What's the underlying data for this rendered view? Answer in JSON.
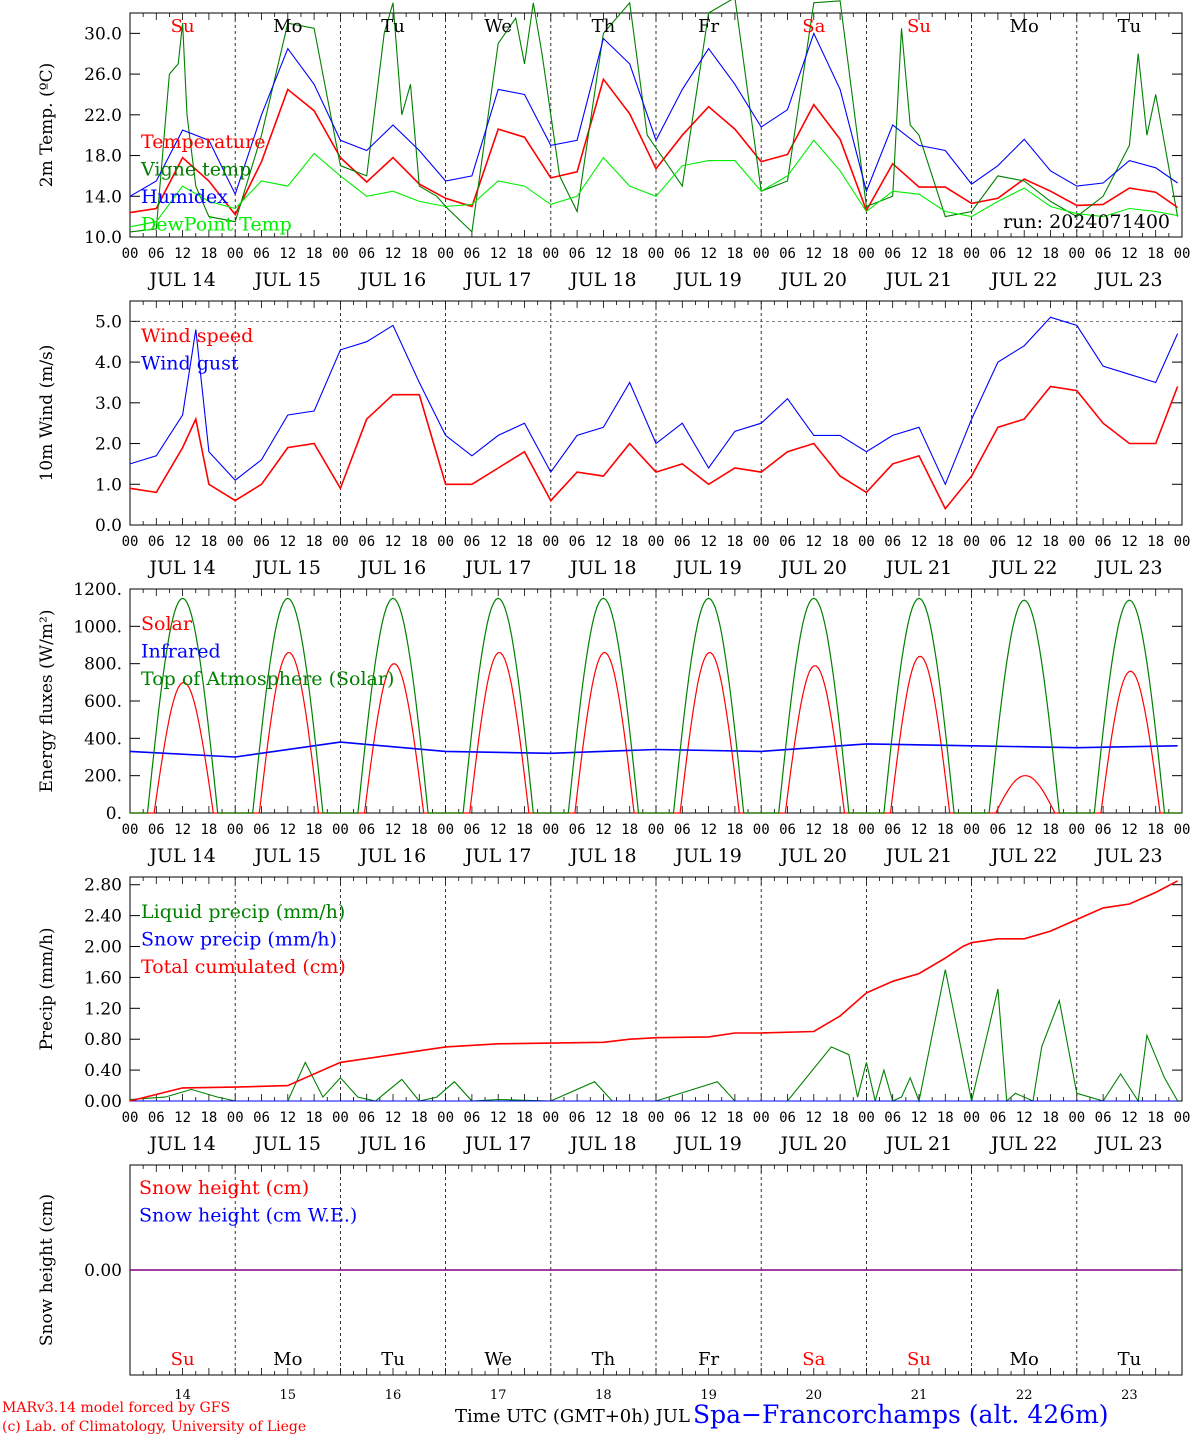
{
  "colors": {
    "red": "#ff0000",
    "green": "#008000",
    "blue": "#0000ff",
    "lightgreen": "#00ee00",
    "purple": "#800080",
    "black": "#000000"
  },
  "days": [
    "JUL 14",
    "JUL 15",
    "JUL 16",
    "JUL 17",
    "JUL 18",
    "JUL 19",
    "JUL 20",
    "JUL 21",
    "JUL 22",
    "JUL 23"
  ],
  "weekdays": [
    "Su",
    "Mo",
    "Tu",
    "We",
    "Th",
    "Fr",
    "Sa",
    "Su",
    "Mo",
    "Tu"
  ],
  "weekday_colors": [
    "red",
    "black",
    "black",
    "black",
    "black",
    "black",
    "red",
    "red",
    "black",
    "black"
  ],
  "day_numbers": [
    "14",
    "15",
    "16",
    "17",
    "18",
    "19",
    "20",
    "21",
    "22",
    "23"
  ],
  "hour_ticks": [
    "00",
    "06",
    "12",
    "18"
  ],
  "hour_end": "00",
  "footer": {
    "credit_line1": "MARv3.14 model forced by GFS",
    "credit_line2": "(c) Lab. of Climatology, University of Liege",
    "xlabel": "Time UTC (GMT+0h) JUL",
    "station": "Spa−Francorchamps (alt. 426m)"
  },
  "chart_data": [
    {
      "type": "line",
      "ylabel": "2m Temp. (ºC)",
      "ylim": [
        10,
        32
      ],
      "yticks": [
        "10.0",
        "14.0",
        "18.0",
        "22.0",
        "26.0",
        "30.0"
      ],
      "annotation": "run: 2024071400",
      "x_unit": "hours since JUL 14 00 UTC",
      "series": [
        {
          "name": "Temperature",
          "color": "red",
          "x": [
            0,
            6,
            12,
            18,
            24,
            30,
            36,
            42,
            48,
            54,
            60,
            66,
            72,
            78,
            84,
            90,
            96,
            102,
            108,
            114,
            120,
            126,
            132,
            138,
            144,
            150,
            156,
            162,
            168,
            174,
            180,
            186,
            192,
            198,
            204,
            210,
            216,
            222,
            228,
            234,
            239
          ],
          "y": [
            12.4,
            12.8,
            17.8,
            15.5,
            12.2,
            17.4,
            24.5,
            22.4,
            17.8,
            15.4,
            17.8,
            15.2,
            13.8,
            13.0,
            20.6,
            19.8,
            15.8,
            16.4,
            25.5,
            22.1,
            16.7,
            20.0,
            22.8,
            20.6,
            17.4,
            18.1,
            23.0,
            19.6,
            12.6,
            17.2,
            14.9,
            14.9,
            13.3,
            13.8,
            15.7,
            14.5,
            13.1,
            13.2,
            14.8,
            14.4,
            12.9
          ]
        },
        {
          "name": "Vigne temp",
          "color": "green",
          "x": [
            0,
            6,
            9,
            11,
            12,
            13,
            15,
            18,
            24,
            30,
            36,
            42,
            48,
            54,
            58,
            60,
            62,
            64,
            66,
            70,
            72,
            78,
            84,
            88,
            90,
            92,
            94,
            98,
            102,
            108,
            114,
            118,
            126,
            132,
            138,
            144,
            150,
            156,
            162,
            168,
            174,
            176,
            178,
            180,
            186,
            192,
            198,
            204,
            210,
            216,
            222,
            228,
            230,
            232,
            234,
            239
          ],
          "y": [
            10.5,
            10.8,
            26.0,
            27.0,
            31.0,
            22.0,
            15.0,
            12.0,
            11.5,
            20.0,
            31.0,
            30.5,
            17.0,
            16.0,
            30.0,
            33.0,
            22.0,
            25.0,
            15.0,
            14.0,
            13.0,
            10.5,
            29.0,
            31.5,
            27.0,
            33.0,
            28.0,
            16.0,
            12.5,
            30.0,
            33.0,
            20.0,
            15.0,
            32.0,
            33.5,
            14.5,
            15.5,
            33.0,
            33.2,
            13.0,
            14.0,
            30.5,
            21.0,
            20.0,
            12.0,
            12.5,
            16.0,
            15.5,
            13.5,
            12.0,
            14.0,
            19.0,
            28.0,
            20.0,
            24.0,
            12.0
          ]
        },
        {
          "name": "Humidex",
          "color": "blue",
          "x": [
            0,
            6,
            12,
            18,
            24,
            30,
            36,
            42,
            48,
            54,
            60,
            66,
            72,
            78,
            84,
            90,
            96,
            102,
            108,
            114,
            120,
            126,
            132,
            138,
            144,
            150,
            156,
            162,
            168,
            174,
            180,
            186,
            192,
            198,
            204,
            210,
            216,
            222,
            228,
            234,
            239
          ],
          "y": [
            14.0,
            15.5,
            20.5,
            19.5,
            14.2,
            22.0,
            28.5,
            25.0,
            19.5,
            18.5,
            21.0,
            18.5,
            15.5,
            16.0,
            24.5,
            24.0,
            19.0,
            19.5,
            29.5,
            27.0,
            19.5,
            24.5,
            28.5,
            25.0,
            20.8,
            22.5,
            30.0,
            24.5,
            14.5,
            21.0,
            19.0,
            18.5,
            15.2,
            17.0,
            19.6,
            16.5,
            15.0,
            15.3,
            17.5,
            16.8,
            15.3
          ]
        },
        {
          "name": "DewPoint Temp",
          "color": "lightgreen",
          "x": [
            0,
            6,
            12,
            18,
            24,
            30,
            36,
            42,
            48,
            54,
            60,
            66,
            72,
            78,
            84,
            90,
            96,
            102,
            108,
            114,
            120,
            126,
            132,
            138,
            144,
            150,
            156,
            162,
            168,
            174,
            180,
            186,
            192,
            198,
            204,
            210,
            216,
            222,
            228,
            234,
            239
          ],
          "y": [
            11.0,
            11.5,
            15.0,
            13.5,
            12.8,
            15.5,
            15.0,
            18.2,
            16.0,
            14.0,
            14.5,
            13.5,
            13.0,
            13.2,
            15.5,
            15.0,
            13.2,
            14.0,
            17.8,
            15.0,
            14.0,
            17.0,
            17.5,
            17.5,
            14.5,
            16.0,
            19.5,
            16.5,
            12.5,
            14.5,
            14.2,
            12.5,
            12.0,
            13.5,
            14.8,
            13.0,
            12.3,
            12.0,
            12.8,
            12.5,
            12.1
          ]
        }
      ]
    },
    {
      "type": "line",
      "ylabel": "10m Wind (m/s)",
      "ylim": [
        0,
        5.5
      ],
      "yticks": [
        "0.0",
        "1.0",
        "2.0",
        "3.0",
        "4.0",
        "5.0"
      ],
      "series": [
        {
          "name": "Wind speed",
          "color": "red",
          "x": [
            0,
            6,
            12,
            15,
            18,
            24,
            30,
            36,
            42,
            48,
            54,
            60,
            66,
            72,
            78,
            84,
            90,
            96,
            102,
            108,
            114,
            120,
            126,
            132,
            138,
            144,
            150,
            156,
            162,
            168,
            174,
            180,
            186,
            192,
            198,
            204,
            210,
            216,
            222,
            228,
            234,
            239
          ],
          "y": [
            0.9,
            0.8,
            1.9,
            2.6,
            1.0,
            0.6,
            1.0,
            1.9,
            2.0,
            0.9,
            2.6,
            3.2,
            3.2,
            1.0,
            1.0,
            1.4,
            1.8,
            0.6,
            1.3,
            1.2,
            2.0,
            1.3,
            1.5,
            1.0,
            1.4,
            1.3,
            1.8,
            2.0,
            1.2,
            0.8,
            1.5,
            1.7,
            0.4,
            1.2,
            2.4,
            2.6,
            3.4,
            3.3,
            2.5,
            2.0,
            2.0,
            3.4
          ]
        },
        {
          "name": "Wind gust",
          "color": "blue",
          "x": [
            0,
            6,
            12,
            15,
            18,
            24,
            30,
            36,
            42,
            48,
            54,
            60,
            66,
            72,
            78,
            84,
            90,
            96,
            102,
            108,
            114,
            120,
            126,
            132,
            138,
            144,
            150,
            156,
            162,
            168,
            174,
            180,
            186,
            192,
            198,
            204,
            210,
            216,
            222,
            228,
            234,
            239
          ],
          "y": [
            1.5,
            1.7,
            2.7,
            4.8,
            1.8,
            1.1,
            1.6,
            2.7,
            2.8,
            4.3,
            4.5,
            4.9,
            3.5,
            2.2,
            1.7,
            2.2,
            2.5,
            1.3,
            2.2,
            2.4,
            3.5,
            2.0,
            2.5,
            1.4,
            2.3,
            2.5,
            3.1,
            2.2,
            2.2,
            1.8,
            2.2,
            2.4,
            1.0,
            2.6,
            4.0,
            4.4,
            5.1,
            4.9,
            3.9,
            3.7,
            3.5,
            4.7
          ]
        }
      ]
    },
    {
      "type": "line",
      "ylabel": "Energy fluxes (W/m²)",
      "ylim": [
        0,
        1200
      ],
      "yticks": [
        "0.",
        "200.",
        "400.",
        "600.",
        "800.",
        "1000.",
        "1200."
      ],
      "series": [
        {
          "name": "Solar",
          "color": "red",
          "peaks": [
            700,
            860,
            800,
            860,
            860,
            860,
            790,
            840,
            200,
            760
          ]
        },
        {
          "name": "Infrared",
          "color": "blue",
          "x": [
            0,
            24,
            48,
            72,
            96,
            120,
            144,
            168,
            192,
            216,
            239
          ],
          "y": [
            330,
            300,
            380,
            330,
            320,
            340,
            330,
            370,
            360,
            350,
            360
          ]
        },
        {
          "name": "Top of Atmosphere (Solar)",
          "color": "green",
          "peaks": [
            1150,
            1150,
            1150,
            1150,
            1150,
            1150,
            1150,
            1150,
            1140,
            1140
          ]
        }
      ]
    },
    {
      "type": "line",
      "ylabel": "Precip (mm/h)",
      "ylim": [
        0,
        2.9
      ],
      "yticks": [
        "0.00",
        "0.40",
        "0.80",
        "1.20",
        "1.60",
        "2.00",
        "2.40",
        "2.80"
      ],
      "series": [
        {
          "name": "Liquid precip (mm/h)",
          "color": "green",
          "x": [
            0,
            8,
            14,
            20,
            24,
            30,
            36,
            40,
            44,
            48,
            52,
            56,
            62,
            66,
            70,
            74,
            78,
            84,
            96,
            106,
            110,
            114,
            120,
            134,
            138,
            142,
            150,
            160,
            164,
            166,
            168,
            170,
            172,
            174,
            176,
            178,
            180,
            186,
            192,
            198,
            200,
            202,
            206,
            208,
            212,
            216,
            222,
            226,
            230,
            232,
            236,
            239
          ],
          "y": [
            0.02,
            0.05,
            0.15,
            0.05,
            0,
            0,
            0,
            0.5,
            0.05,
            0.3,
            0.05,
            0,
            0.28,
            0,
            0.05,
            0.25,
            0,
            0.02,
            0,
            0.25,
            0,
            0,
            0,
            0.25,
            0,
            0,
            0,
            0.7,
            0.6,
            0.05,
            0.5,
            0,
            0.4,
            0,
            0.05,
            0.3,
            0,
            1.7,
            0,
            1.45,
            0,
            0.1,
            0,
            0.7,
            1.3,
            0.1,
            0,
            0.35,
            0,
            0.85,
            0.3,
            0
          ]
        },
        {
          "name": "Snow precip (mm/h)",
          "color": "blue",
          "x": [
            0,
            239
          ],
          "y": [
            0,
            0
          ]
        },
        {
          "name": "Total cumulated (cm)",
          "color": "red",
          "x": [
            0,
            12,
            24,
            36,
            40,
            48,
            60,
            72,
            84,
            96,
            108,
            114,
            120,
            132,
            138,
            144,
            156,
            162,
            168,
            174,
            180,
            186,
            190,
            192,
            198,
            204,
            210,
            216,
            222,
            228,
            234,
            239
          ],
          "y": [
            0.0,
            0.17,
            0.18,
            0.2,
            0.3,
            0.5,
            0.6,
            0.7,
            0.74,
            0.75,
            0.76,
            0.8,
            0.82,
            0.83,
            0.88,
            0.88,
            0.9,
            1.1,
            1.4,
            1.55,
            1.65,
            1.85,
            2.0,
            2.05,
            2.1,
            2.1,
            2.2,
            2.35,
            2.5,
            2.55,
            2.7,
            2.85
          ]
        }
      ]
    },
    {
      "type": "line",
      "ylabel": "Snow height (cm)",
      "yticks": [
        "0.00"
      ],
      "series": [
        {
          "name": "Snow height (cm)",
          "color": "red",
          "x": [
            0,
            239
          ],
          "y": [
            0,
            0
          ]
        },
        {
          "name": "Snow height (cm W.E.)",
          "color": "blue",
          "x": [
            0,
            239
          ],
          "y": [
            0,
            0
          ]
        }
      ]
    }
  ]
}
